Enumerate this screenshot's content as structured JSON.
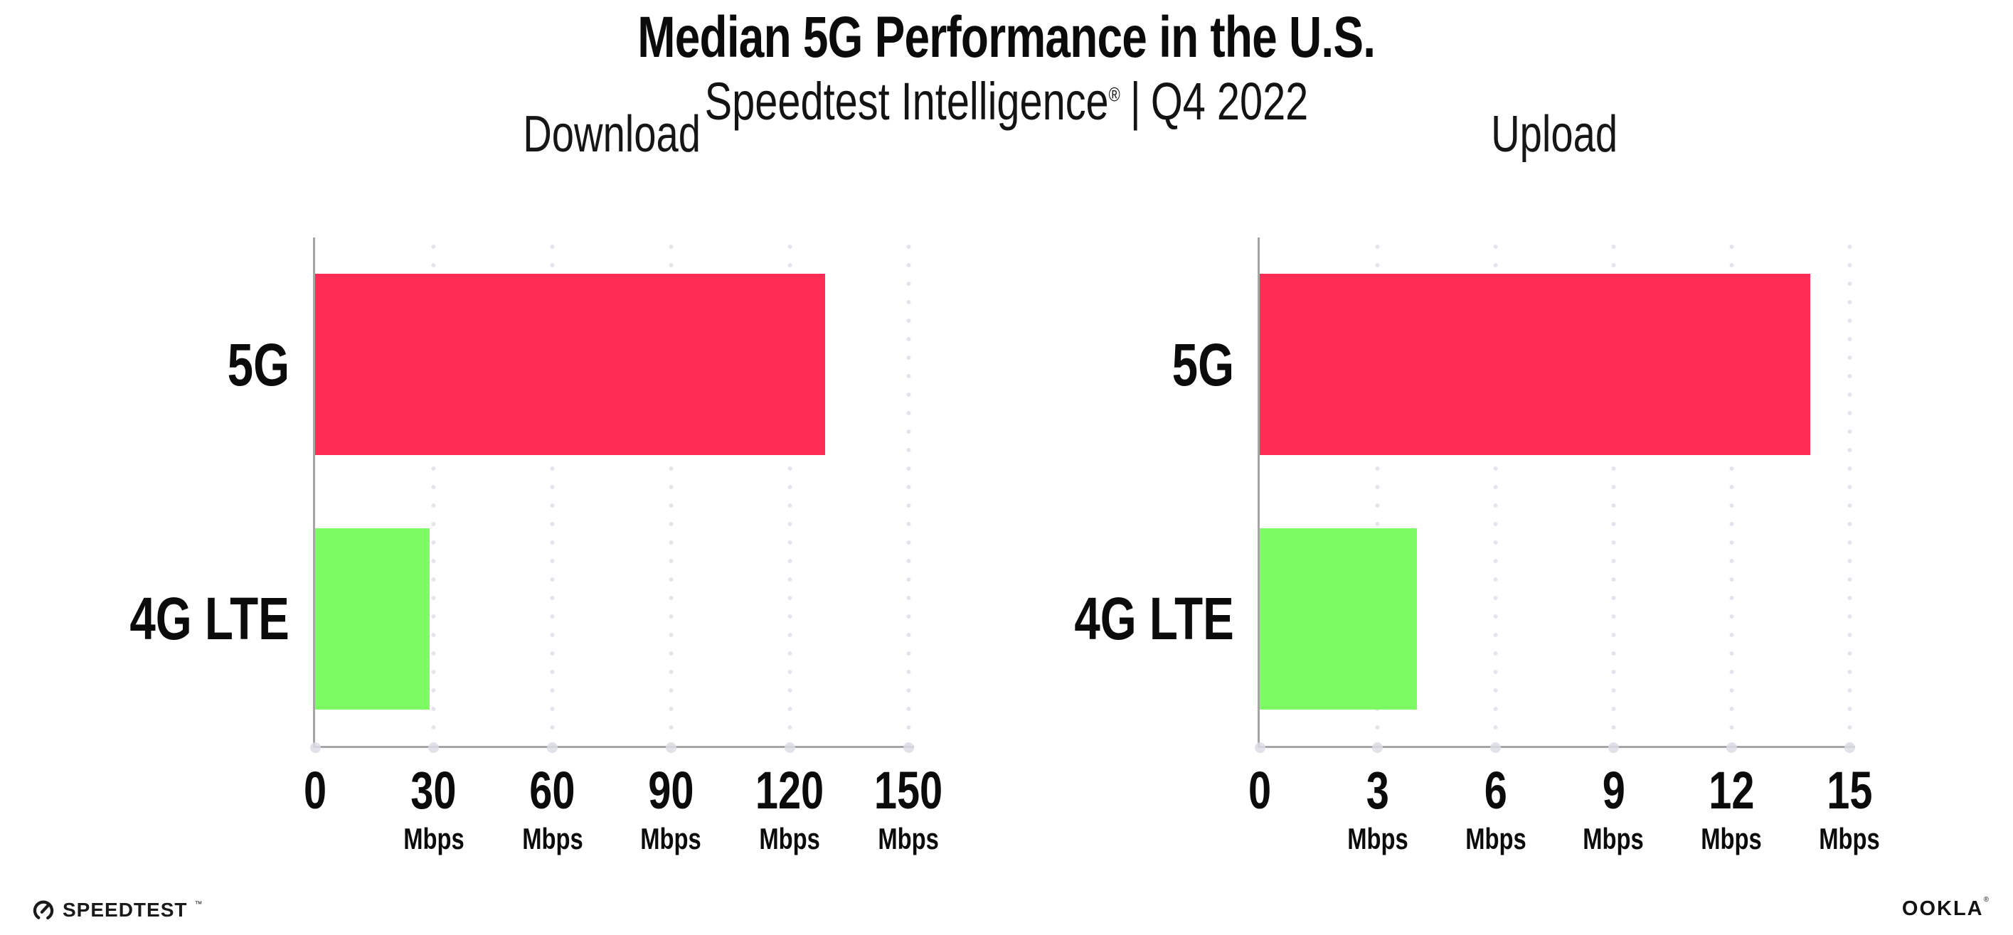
{
  "title": "Median 5G Performance in the U.S.",
  "subtitle": {
    "brand": "Speedtest Intelligence",
    "registered": "®",
    "separator": "|",
    "period": "Q4 2022"
  },
  "colors": {
    "bar_5g": "#ff2d55",
    "bar_4g_lte": "#7dfb63",
    "axis": "#a5a5a5",
    "gridline": "#e4e4ee",
    "axis_dot": "#dcdce6",
    "text": "#0b0b0b"
  },
  "chart_data": [
    {
      "type": "bar",
      "orientation": "horizontal",
      "title": "Download",
      "categories": [
        "5G",
        "4G LTE"
      ],
      "values": [
        129,
        29
      ],
      "unit": "Mbps",
      "xlim": [
        0,
        150
      ],
      "xticks": [
        0,
        30,
        60,
        90,
        120,
        150
      ],
      "bar_colors": [
        "#ff2d55",
        "#7dfb63"
      ],
      "grid": "vertical-dotted",
      "legend": "none"
    },
    {
      "type": "bar",
      "orientation": "horizontal",
      "title": "Upload",
      "categories": [
        "5G",
        "4G LTE"
      ],
      "values": [
        14,
        4
      ],
      "unit": "Mbps",
      "xlim": [
        0,
        15
      ],
      "xticks": [
        0,
        3,
        6,
        9,
        12,
        15
      ],
      "bar_colors": [
        "#ff2d55",
        "#7dfb63"
      ],
      "grid": "vertical-dotted",
      "legend": "none"
    }
  ],
  "footer": {
    "speedtest_label": "SPEEDTEST",
    "speedtest_mark": "™",
    "ookla_label": "OOKLA",
    "ookla_mark": "®"
  }
}
